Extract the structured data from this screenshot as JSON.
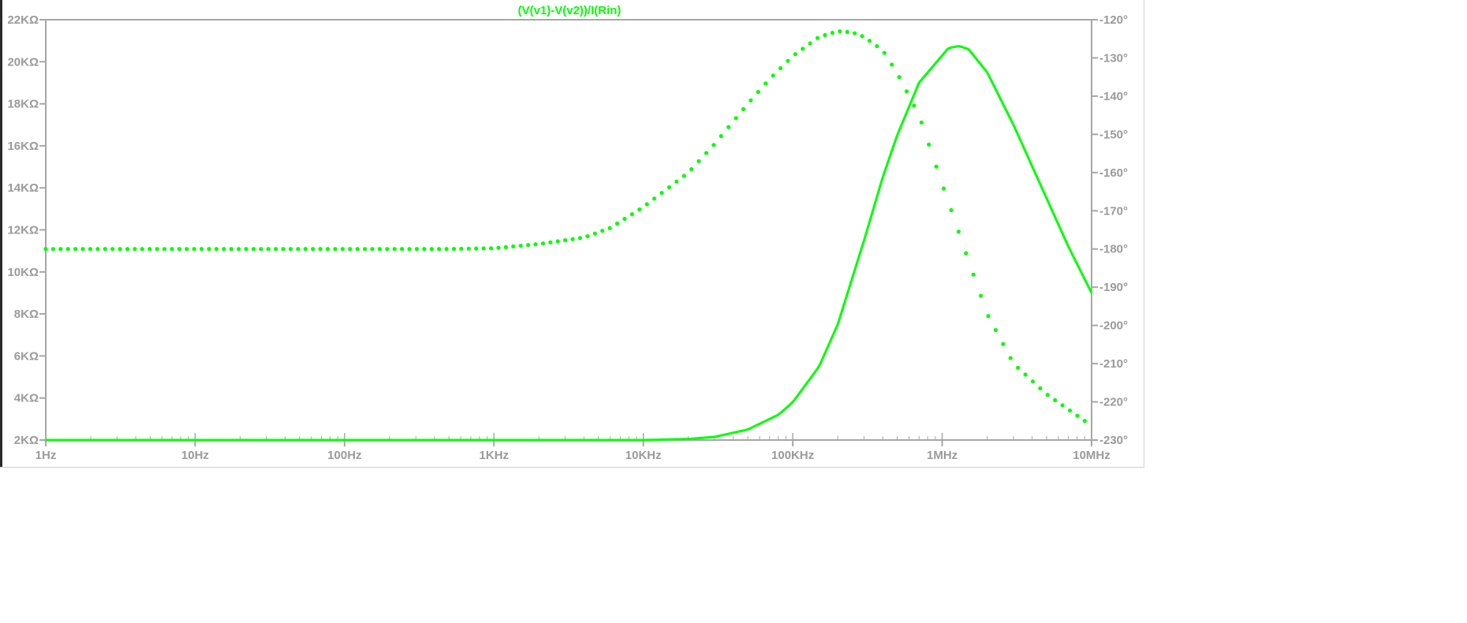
{
  "chart_data": {
    "type": "line",
    "title": "(V(v1)-V(v2))/I(Rin)",
    "colors": {
      "trace": "#00ff00",
      "axis": "#a6a6a6",
      "label": "#9a9a9a",
      "background": "#ffffff"
    },
    "x_scale": "log",
    "xlim": [
      1,
      10000000
    ],
    "x_ticks": [
      {
        "value": 1,
        "label": "1Hz"
      },
      {
        "value": 10,
        "label": "10Hz"
      },
      {
        "value": 100,
        "label": "100Hz"
      },
      {
        "value": 1000,
        "label": "1KHz"
      },
      {
        "value": 10000,
        "label": "10KHz"
      },
      {
        "value": 100000,
        "label": "100KHz"
      },
      {
        "value": 1000000,
        "label": "1MHz"
      },
      {
        "value": 10000000,
        "label": "10MHz"
      }
    ],
    "y_left": {
      "lim": [
        2000,
        22000
      ],
      "unit": "Ω",
      "ticks": [
        {
          "value": 22000,
          "label": "22KΩ"
        },
        {
          "value": 20000,
          "label": "20KΩ"
        },
        {
          "value": 18000,
          "label": "18KΩ"
        },
        {
          "value": 16000,
          "label": "16KΩ"
        },
        {
          "value": 14000,
          "label": "14KΩ"
        },
        {
          "value": 12000,
          "label": "12KΩ"
        },
        {
          "value": 10000,
          "label": "10KΩ"
        },
        {
          "value": 8000,
          "label": "8KΩ"
        },
        {
          "value": 6000,
          "label": "6KΩ"
        },
        {
          "value": 4000,
          "label": "4KΩ"
        },
        {
          "value": 2000,
          "label": "2KΩ"
        }
      ]
    },
    "y_right": {
      "lim": [
        -230,
        -120
      ],
      "unit": "°",
      "ticks": [
        {
          "value": -120,
          "label": "-120°"
        },
        {
          "value": -130,
          "label": "-130°"
        },
        {
          "value": -140,
          "label": "-140°"
        },
        {
          "value": -150,
          "label": "-150°"
        },
        {
          "value": -160,
          "label": "-160°"
        },
        {
          "value": -170,
          "label": "-170°"
        },
        {
          "value": -180,
          "label": "-180°"
        },
        {
          "value": -190,
          "label": "-190°"
        },
        {
          "value": -200,
          "label": "-200°"
        },
        {
          "value": -210,
          "label": "-210°"
        },
        {
          "value": -220,
          "label": "-220°"
        },
        {
          "value": -230,
          "label": "-230°"
        }
      ]
    },
    "grid": false,
    "series": [
      {
        "style": "solid",
        "axis": "left",
        "x": [
          1,
          10,
          100,
          1000,
          10000,
          20000,
          30000,
          50000,
          80000,
          100000,
          150000,
          200000,
          300000,
          400000,
          500000,
          700000,
          1000000,
          1100000,
          1300000,
          1500000,
          2000000,
          3000000,
          5000000,
          7000000,
          10000000
        ],
        "values": [
          2000,
          2000,
          2000,
          2000,
          2000,
          2050,
          2150,
          2500,
          3200,
          3800,
          5500,
          7500,
          11500,
          14500,
          16500,
          19000,
          20300,
          20650,
          20750,
          20600,
          19500,
          17000,
          13500,
          11200,
          9000
        ]
      },
      {
        "style": "dotted",
        "axis": "right",
        "x": [
          1,
          10,
          100,
          500,
          1000,
          2000,
          4000,
          6000,
          10000,
          20000,
          30000,
          50000,
          70000,
          100000,
          150000,
          200000,
          250000,
          300000,
          400000,
          500000,
          700000,
          1000000,
          1500000,
          2000000,
          3000000,
          5000000,
          7000000,
          9000000
        ],
        "values": [
          -180,
          -180,
          -180,
          -180,
          -179.8,
          -178.7,
          -177,
          -174.5,
          -169,
          -160,
          -152.5,
          -142,
          -135.5,
          -129.5,
          -124.5,
          -123,
          -123.3,
          -124.5,
          -128,
          -134,
          -145,
          -163,
          -183,
          -197,
          -210,
          -218,
          -222,
          -225
        ]
      }
    ]
  }
}
